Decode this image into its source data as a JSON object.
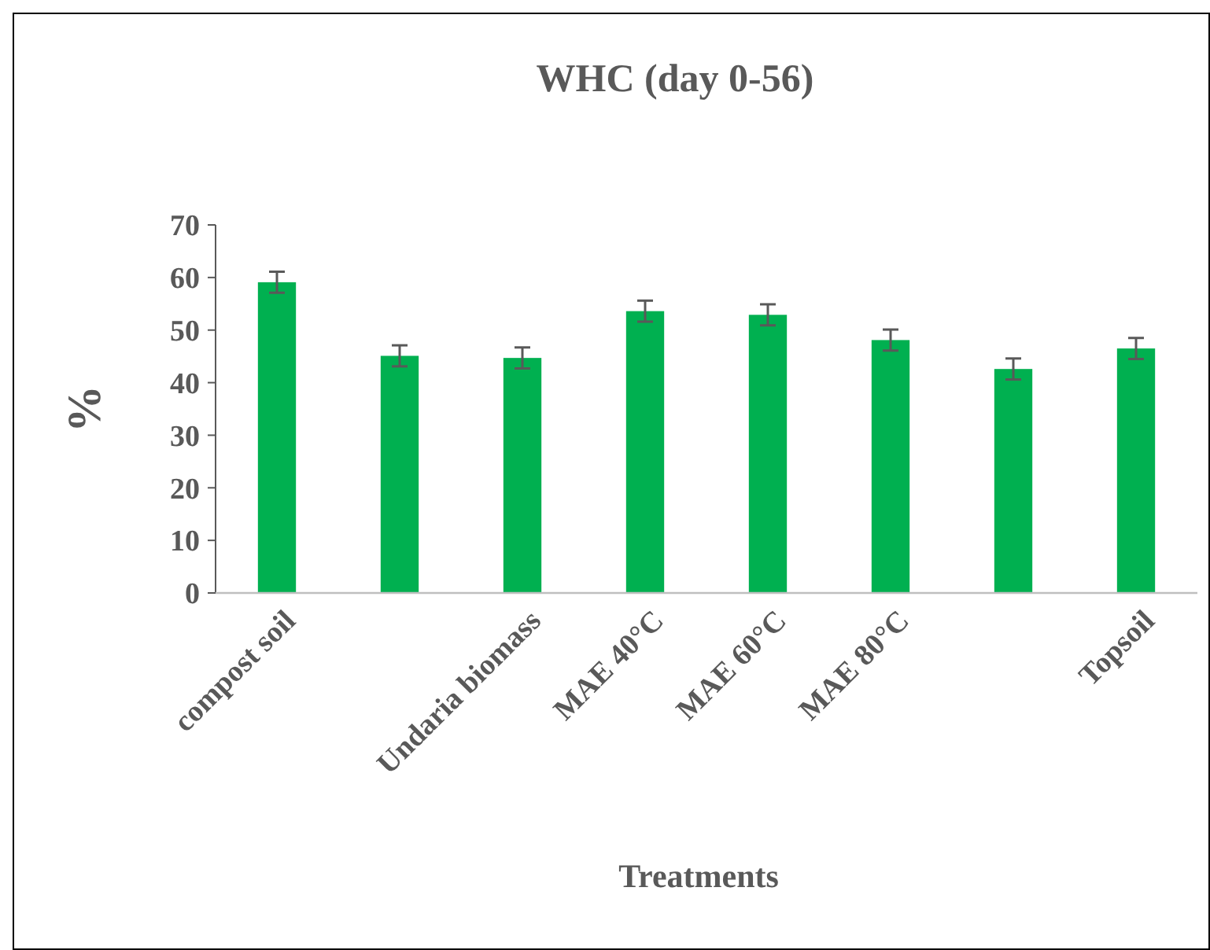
{
  "chart_data": {
    "type": "bar",
    "title": "WHC (day 0-56)",
    "xlabel": "Treatments",
    "ylabel": "%",
    "categories": [
      "compost soil",
      null,
      "Undaria biomass",
      "MAE 40°C",
      "MAE 60°C",
      "MAE 80°C",
      null,
      "Topsoil"
    ],
    "values": [
      59.1,
      45.1,
      44.7,
      53.6,
      52.9,
      48.1,
      42.6,
      46.5
    ],
    "errors": [
      2,
      2,
      2,
      2,
      2,
      2,
      2,
      2
    ],
    "color": "#00b050",
    "ylim": [
      0,
      70
    ],
    "yticks": [
      0,
      10,
      20,
      30,
      40,
      50,
      60,
      70
    ],
    "grid": false
  }
}
